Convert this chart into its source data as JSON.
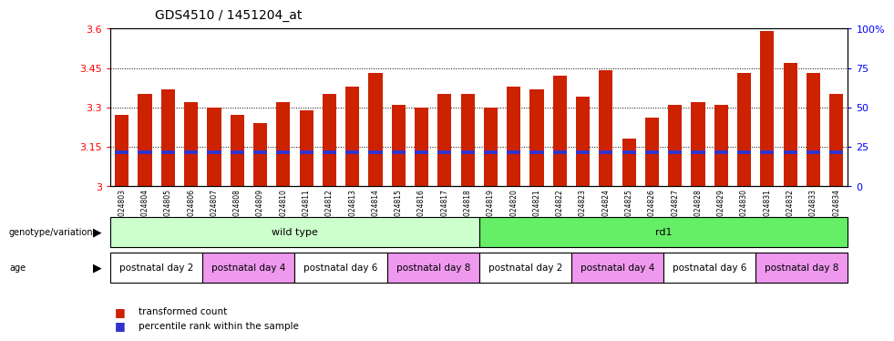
{
  "title": "GDS4510 / 1451204_at",
  "samples": [
    "GSM1024803",
    "GSM1024804",
    "GSM1024805",
    "GSM1024806",
    "GSM1024807",
    "GSM1024808",
    "GSM1024809",
    "GSM1024810",
    "GSM1024811",
    "GSM1024812",
    "GSM1024813",
    "GSM1024814",
    "GSM1024815",
    "GSM1024816",
    "GSM1024817",
    "GSM1024818",
    "GSM1024819",
    "GSM1024820",
    "GSM1024821",
    "GSM1024822",
    "GSM1024823",
    "GSM1024824",
    "GSM1024825",
    "GSM1024826",
    "GSM1024827",
    "GSM1024828",
    "GSM1024829",
    "GSM1024830",
    "GSM1024831",
    "GSM1024832",
    "GSM1024833",
    "GSM1024834"
  ],
  "bar_values": [
    3.27,
    3.35,
    3.37,
    3.32,
    3.3,
    3.27,
    3.24,
    3.32,
    3.29,
    3.35,
    3.38,
    3.43,
    3.31,
    3.3,
    3.35,
    3.35,
    3.3,
    3.38,
    3.37,
    3.42,
    3.34,
    3.44,
    3.18,
    3.26,
    3.31,
    3.32,
    3.31,
    3.43,
    3.59,
    3.47,
    3.43,
    3.35
  ],
  "percentile_values": [
    3.13,
    3.13,
    3.13,
    3.13,
    3.13,
    3.13,
    3.13,
    3.13,
    3.13,
    3.13,
    3.13,
    3.13,
    3.13,
    3.13,
    3.13,
    3.13,
    3.13,
    3.13,
    3.13,
    3.13,
    3.13,
    3.13,
    3.13,
    3.13,
    3.13,
    3.13,
    3.13,
    3.13,
    3.13,
    3.13,
    3.13,
    3.13
  ],
  "ylim": [
    3.0,
    3.6
  ],
  "yticks": [
    3.0,
    3.15,
    3.3,
    3.45,
    3.6
  ],
  "ytick_labels": [
    "3",
    "3.15",
    "3.3",
    "3.45",
    "3.6"
  ],
  "right_yticks": [
    0,
    25,
    50,
    75,
    100
  ],
  "right_ytick_labels": [
    "0",
    "25",
    "50",
    "75",
    "100%"
  ],
  "bar_color": "#cc2200",
  "percentile_color": "#3333cc",
  "bar_width": 0.6,
  "genotype_groups": [
    {
      "label": "wild type",
      "start": 0,
      "end": 16,
      "color": "#ccffcc"
    },
    {
      "label": "rd1",
      "start": 16,
      "end": 32,
      "color": "#66ee66"
    }
  ],
  "age_groups": [
    {
      "label": "postnatal day 2",
      "start": 0,
      "end": 4,
      "color": "#ffffff"
    },
    {
      "label": "postnatal day 4",
      "start": 4,
      "end": 8,
      "color": "#ee99ee"
    },
    {
      "label": "postnatal day 6",
      "start": 8,
      "end": 12,
      "color": "#ffffff"
    },
    {
      "label": "postnatal day 8",
      "start": 12,
      "end": 16,
      "color": "#ee99ee"
    },
    {
      "label": "postnatal day 2",
      "start": 16,
      "end": 20,
      "color": "#ffffff"
    },
    {
      "label": "postnatal day 4",
      "start": 20,
      "end": 24,
      "color": "#ee99ee"
    },
    {
      "label": "postnatal day 6",
      "start": 24,
      "end": 28,
      "color": "#ffffff"
    },
    {
      "label": "postnatal day 8",
      "start": 28,
      "end": 32,
      "color": "#ee99ee"
    }
  ],
  "legend_items": [
    {
      "label": "transformed count",
      "color": "#cc2200"
    },
    {
      "label": "percentile rank within the sample",
      "color": "#3333cc"
    }
  ]
}
